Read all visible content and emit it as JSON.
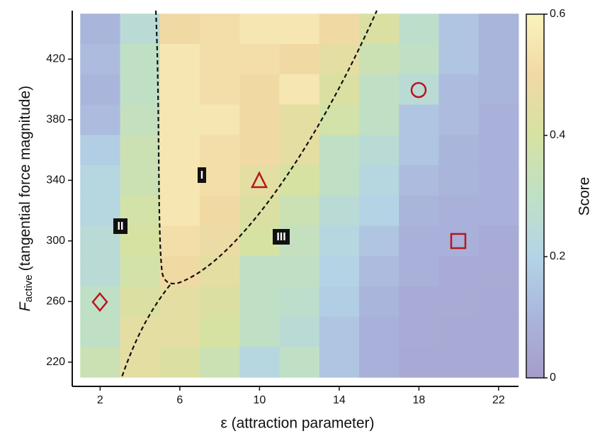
{
  "chart_data": {
    "type": "heatmap",
    "x_label": "ε (attraction parameter)",
    "y_label_symbol": "F",
    "y_label_subscript": "active",
    "y_label_rest": "(tangential force magnitude)",
    "colorbar_label": "Score",
    "annotations": [
      "I",
      "II",
      "III"
    ],
    "x": [
      2,
      4,
      6,
      8,
      10,
      12,
      14,
      16,
      18,
      20,
      22
    ],
    "y": [
      440,
      420,
      400,
      380,
      360,
      340,
      320,
      300,
      280,
      260,
      240,
      220
    ],
    "z": [
      [
        0.1,
        0.25,
        0.5,
        0.52,
        0.55,
        0.55,
        0.5,
        0.42,
        0.28,
        0.15,
        0.1
      ],
      [
        0.12,
        0.3,
        0.55,
        0.52,
        0.52,
        0.5,
        0.45,
        0.35,
        0.3,
        0.15,
        0.1
      ],
      [
        0.1,
        0.3,
        0.55,
        0.52,
        0.5,
        0.55,
        0.42,
        0.3,
        0.25,
        0.12,
        0.1
      ],
      [
        0.12,
        0.32,
        0.55,
        0.55,
        0.5,
        0.45,
        0.38,
        0.3,
        0.15,
        0.12,
        0.08
      ],
      [
        0.18,
        0.35,
        0.55,
        0.52,
        0.5,
        0.45,
        0.3,
        0.25,
        0.15,
        0.1,
        0.08
      ],
      [
        0.22,
        0.35,
        0.55,
        0.52,
        0.45,
        0.4,
        0.3,
        0.22,
        0.12,
        0.1,
        0.08
      ],
      [
        0.22,
        0.38,
        0.55,
        0.5,
        0.42,
        0.35,
        0.25,
        0.2,
        0.1,
        0.08,
        0.08
      ],
      [
        0.25,
        0.4,
        0.52,
        0.48,
        0.4,
        0.32,
        0.22,
        0.15,
        0.08,
        0.08,
        0.06
      ],
      [
        0.25,
        0.38,
        0.5,
        0.45,
        0.3,
        0.3,
        0.2,
        0.12,
        0.08,
        0.06,
        0.06
      ],
      [
        0.3,
        0.42,
        0.45,
        0.42,
        0.3,
        0.28,
        0.18,
        0.1,
        0.06,
        0.06,
        0.05
      ],
      [
        0.3,
        0.45,
        0.45,
        0.4,
        0.3,
        0.25,
        0.15,
        0.08,
        0.06,
        0.05,
        0.05
      ],
      [
        0.35,
        0.45,
        0.42,
        0.35,
        0.22,
        0.3,
        0.15,
        0.08,
        0.05,
        0.05,
        0.05
      ]
    ],
    "xlim": [
      0.6,
      23
    ],
    "ylim": [
      204,
      452
    ],
    "xticks": [
      2,
      6,
      10,
      14,
      18,
      22
    ],
    "yticks": [
      220,
      260,
      300,
      340,
      380,
      420
    ],
    "zlim": [
      0,
      0.6
    ],
    "zticks": [
      0,
      0.2,
      0.4,
      0.6
    ],
    "colormap": [
      "#a59dcb",
      "#aab5dc",
      "#b4d4e6",
      "#c0e0c6",
      "#d6e2a2",
      "#f1d9a4",
      "#faf3bd"
    ]
  }
}
